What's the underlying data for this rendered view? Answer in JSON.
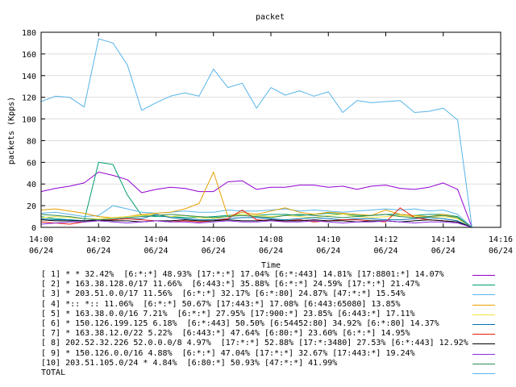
{
  "chart_data": {
    "type": "line",
    "title": "packet",
    "xlabel": "Time",
    "ylabel": "packets (Kpps)",
    "ylim": [
      0,
      180
    ],
    "yticks": [
      "0",
      "20",
      "40",
      "60",
      "80",
      "100",
      "120",
      "140",
      "160",
      "180"
    ],
    "xlim": [
      0,
      32
    ],
    "xticks": [
      {
        "time": "14:00",
        "date": "06/24"
      },
      {
        "time": "14:02",
        "date": "06/24"
      },
      {
        "time": "14:04",
        "date": "06/24"
      },
      {
        "time": "14:06",
        "date": "06/24"
      },
      {
        "time": "14:08",
        "date": "06/24"
      },
      {
        "time": "14:10",
        "date": "06/24"
      },
      {
        "time": "14:12",
        "date": "06/24"
      },
      {
        "time": "14:14",
        "date": "06/24"
      },
      {
        "time": "14:16",
        "date": "06/24"
      }
    ],
    "x": [
      0,
      1,
      2,
      3,
      4,
      5,
      6,
      7,
      8,
      9,
      10,
      11,
      12,
      13,
      14,
      15,
      16,
      17,
      18,
      19,
      20,
      21,
      22,
      23,
      24,
      25,
      26,
      27,
      28,
      29,
      30
    ],
    "series": [
      {
        "name": "[ 1] * * 32.42%  [6:*:*] 48.93% [17:*:*] 17.04% [6:*:443] 14.81% [17:8801:*] 14.07%",
        "color": "#9400d3",
        "values": [
          33,
          36,
          38,
          41,
          51,
          48,
          44,
          32,
          35,
          37,
          36,
          33,
          33,
          42,
          43,
          35,
          37,
          37,
          39,
          39,
          37,
          38,
          35,
          38,
          39,
          36,
          35,
          37,
          41,
          35,
          0
        ]
      },
      {
        "name": "[ 2] * 163.38.128.0/17 11.66%  [6:443:*] 35.88% [6:*:*] 24.59% [17:*:*] 21.47%",
        "color": "#009e73",
        "values": [
          10,
          8,
          7,
          6,
          60,
          58,
          30,
          11,
          10,
          10,
          9,
          9,
          10,
          11,
          12,
          11,
          12,
          12,
          11,
          12,
          13,
          12,
          11,
          11,
          12,
          12,
          11,
          12,
          12,
          10,
          0
        ]
      },
      {
        "name": "[ 3] * 203.51.0.0/17 11.56%  [6:*:*] 32.17% [6:*:80] 24.87% [47:*:*] 15.54%",
        "color": "#56b4e9",
        "values": [
          13,
          14,
          12,
          10,
          11,
          20,
          17,
          14,
          13,
          14,
          15,
          14,
          14,
          16,
          15,
          15,
          16,
          17,
          15,
          16,
          15,
          14,
          15,
          16,
          17,
          16,
          17,
          15,
          16,
          12,
          0
        ]
      },
      {
        "name": "[ 4] *:: *:: 11.06%  [6:*:*] 50.67% [17:443:*] 17.08% [6:443:65080] 13.85%",
        "color": "#e69f00",
        "values": [
          16,
          17,
          15,
          13,
          10,
          9,
          10,
          12,
          13,
          14,
          17,
          22,
          51,
          10,
          14,
          12,
          15,
          18,
          14,
          12,
          14,
          13,
          12,
          11,
          16,
          12,
          11,
          10,
          12,
          9,
          0
        ]
      },
      {
        "name": "[ 5] * 163.38.0.0/16 7.21%  [6:*:*] 27.95% [17:900:*] 23.85% [6:443:*] 17.11%",
        "color": "#f0e442",
        "values": [
          9,
          10,
          9,
          8,
          8,
          9,
          10,
          11,
          12,
          10,
          11,
          9,
          8,
          10,
          12,
          11,
          10,
          11,
          10,
          9,
          11,
          12,
          10,
          9,
          10,
          11,
          10,
          9,
          10,
          8,
          0
        ]
      },
      {
        "name": "[ 6] * 150.126.199.125 6.18%  [6:*:443] 50.50% [6:54452:80] 34.92% [6:*:80] 14.37%",
        "color": "#0072b2",
        "values": [
          8,
          7,
          7,
          6,
          6,
          7,
          8,
          8,
          12,
          9,
          8,
          7,
          7,
          8,
          9,
          9,
          8,
          7,
          8,
          9,
          8,
          7,
          8,
          8,
          7,
          7,
          8,
          9,
          8,
          6,
          0
        ]
      },
      {
        "name": "[ 7] * 163.38.12.0/22 5.22%  [6:443:*] 47.64% [6:80:*] 23.60% [6:*:*] 14.95%",
        "color": "#e51e10",
        "values": [
          5,
          4,
          3,
          5,
          6,
          7,
          8,
          7,
          6,
          5,
          6,
          5,
          6,
          8,
          16,
          7,
          6,
          6,
          7,
          5,
          6,
          7,
          7,
          6,
          5,
          18,
          9,
          7,
          6,
          5,
          0
        ]
      },
      {
        "name": "[ 8] 202.52.32.226 52.0.0.0/8 4.97%  [17:*:*] 52.88% [17:*:3480] 27.53% [6:*:443] 12.92%",
        "color": "#000000",
        "values": [
          7,
          6,
          6,
          6,
          7,
          6,
          6,
          5,
          6,
          6,
          7,
          6,
          6,
          7,
          6,
          6,
          7,
          6,
          6,
          7,
          6,
          6,
          5,
          6,
          6,
          5,
          6,
          7,
          6,
          5,
          0
        ]
      },
      {
        "name": "[ 9] * 150.126.0.0/16 4.88%  [6:*:*] 47.04% [17:*:*] 32.67% [17:443:*] 19.24%",
        "color": "#8a2be2",
        "values": [
          3,
          4,
          5,
          5,
          6,
          5,
          4,
          5,
          6,
          5,
          5,
          4,
          5,
          6,
          5,
          5,
          6,
          5,
          5,
          6,
          5,
          4,
          5,
          5,
          6,
          5,
          4,
          5,
          5,
          4,
          0
        ]
      },
      {
        "name": "[10] 203.51.105.0/24 * 4.84%  [6:80:*] 50.93% [47:*:*] 41.99%",
        "color": "#2e8b57",
        "values": [
          12,
          11,
          10,
          8,
          7,
          8,
          9,
          10,
          11,
          12,
          11,
          10,
          9,
          10,
          11,
          10,
          9,
          11,
          12,
          11,
          10,
          9,
          10,
          11,
          12,
          10,
          9,
          10,
          11,
          9,
          0
        ]
      },
      {
        "name": "TOTAL",
        "color": "#56b4e9",
        "values": [
          116,
          121,
          120,
          111,
          174,
          170,
          150,
          108,
          115,
          121,
          124,
          121,
          146,
          129,
          133,
          110,
          129,
          122,
          126,
          121,
          125,
          106,
          117,
          115,
          116,
          117,
          106,
          107,
          110,
          99,
          0
        ]
      }
    ]
  }
}
